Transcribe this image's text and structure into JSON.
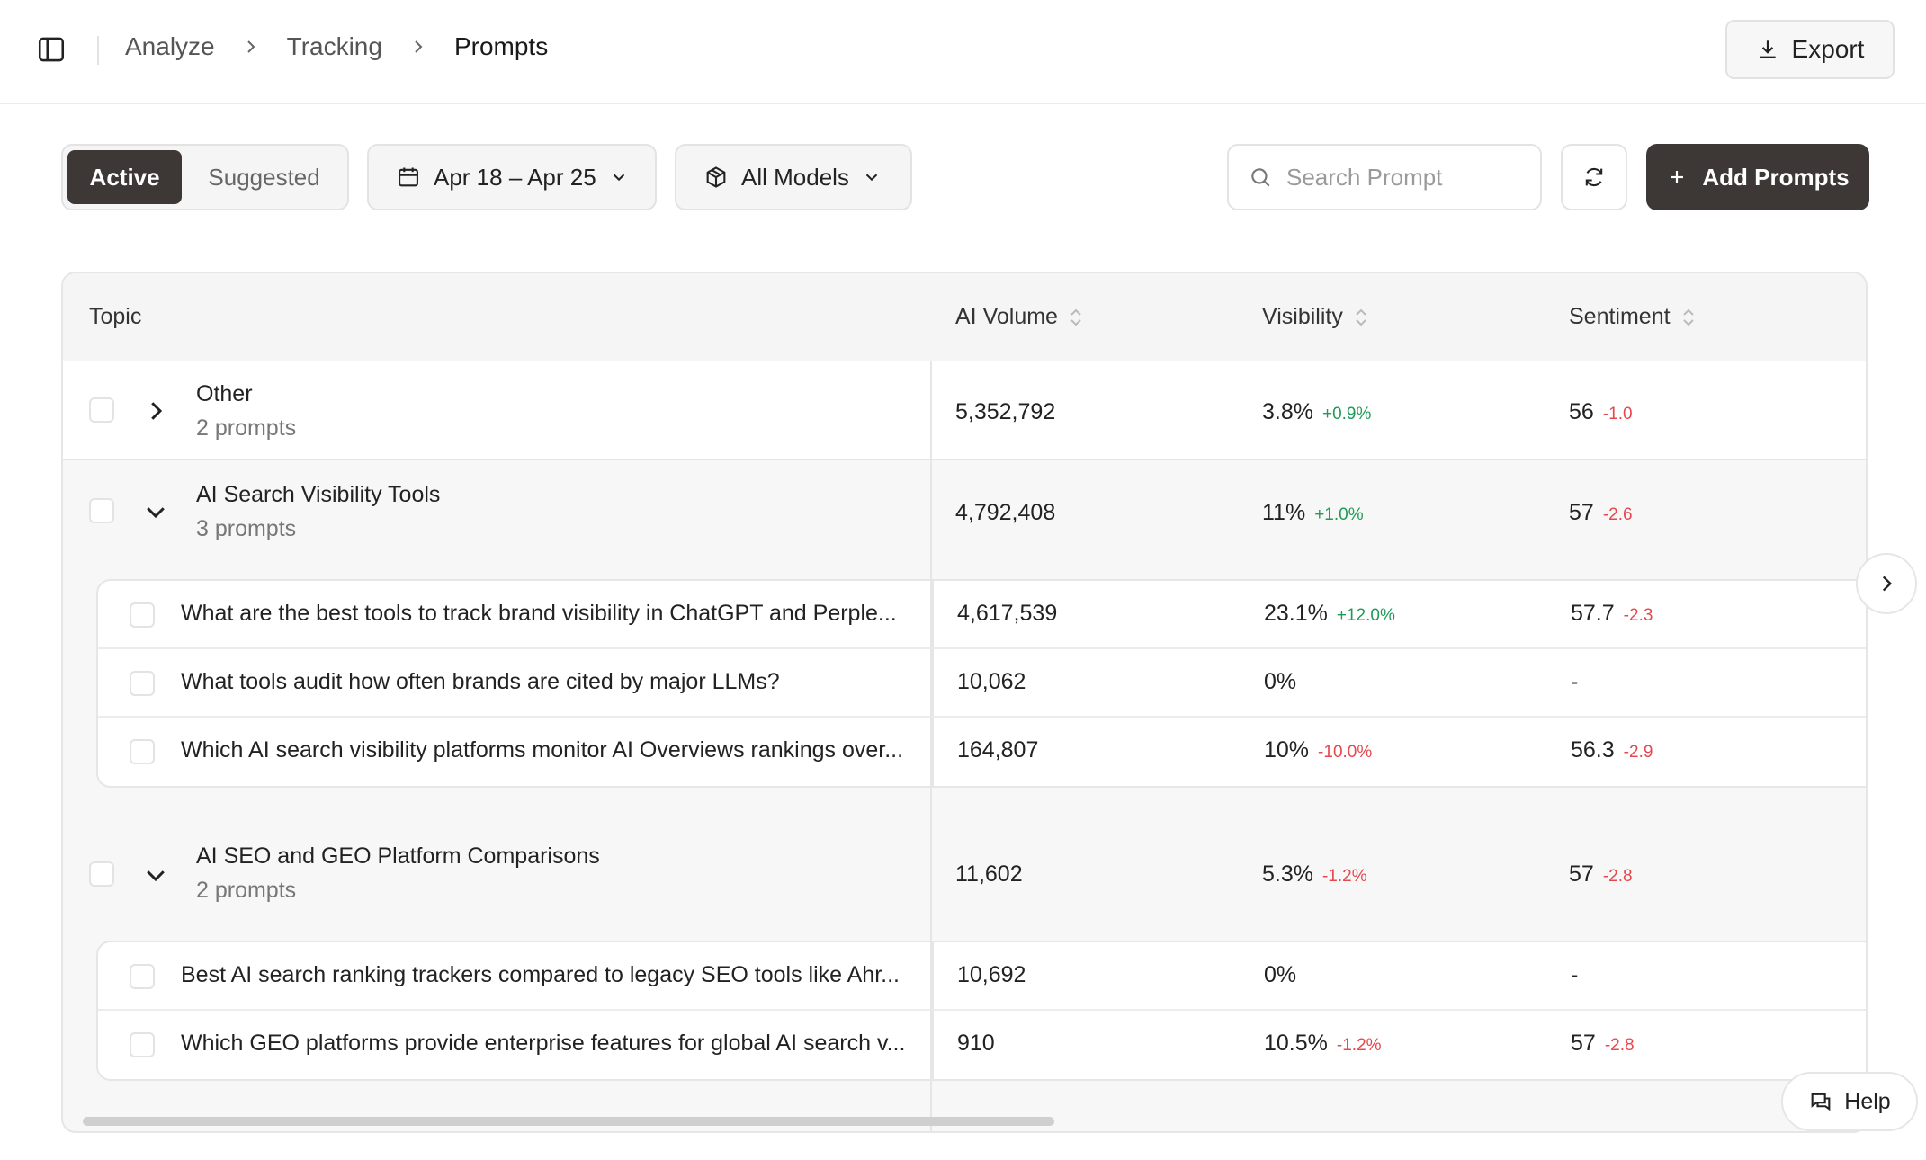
{
  "header": {
    "breadcrumb": [
      "Analyze",
      "Tracking",
      "Prompts"
    ],
    "export_label": "Export"
  },
  "toolbar": {
    "tabs": [
      "Active",
      "Suggested"
    ],
    "date_range": "Apr 18 – Apr 25",
    "models": "All Models",
    "search_placeholder": "Search Prompt",
    "add_label": "Add Prompts"
  },
  "table": {
    "columns": [
      "Topic",
      "AI Volume",
      "Visibility",
      "Sentiment"
    ],
    "groups": [
      {
        "title": "Other",
        "subtitle": "2 prompts",
        "expanded": false,
        "volume": "5,352,792",
        "visibility": "3.8%",
        "visibility_delta": "+0.9%",
        "sentiment": "56",
        "sentiment_delta": "-1.0",
        "prompts": []
      },
      {
        "title": "AI Search Visibility Tools",
        "subtitle": "3 prompts",
        "expanded": true,
        "volume": "4,792,408",
        "visibility": "11%",
        "visibility_delta": "+1.0%",
        "sentiment": "57",
        "sentiment_delta": "-2.6",
        "prompts": [
          {
            "text": "What are the best tools to track brand visibility in ChatGPT and Perple...",
            "volume": "4,617,539",
            "visibility": "23.1%",
            "visibility_delta": "+12.0%",
            "sentiment": "57.7",
            "sentiment_delta": "-2.3"
          },
          {
            "text": "What tools audit how often brands are cited by major LLMs?",
            "volume": "10,062",
            "visibility": "0%",
            "visibility_delta": "",
            "sentiment": "-",
            "sentiment_delta": ""
          },
          {
            "text": "Which AI search visibility platforms monitor AI Overviews rankings over...",
            "volume": "164,807",
            "visibility": "10%",
            "visibility_delta": "-10.0%",
            "sentiment": "56.3",
            "sentiment_delta": "-2.9"
          }
        ]
      },
      {
        "title": "AI SEO and GEO Platform Comparisons",
        "subtitle": "2 prompts",
        "expanded": true,
        "volume": "11,602",
        "visibility": "5.3%",
        "visibility_delta": "-1.2%",
        "sentiment": "57",
        "sentiment_delta": "-2.8",
        "prompts": [
          {
            "text": "Best AI search ranking trackers compared to legacy SEO tools like Ahr...",
            "volume": "10,692",
            "visibility": "0%",
            "visibility_delta": "",
            "sentiment": "-",
            "sentiment_delta": ""
          },
          {
            "text": "Which GEO platforms provide enterprise features for global AI search v...",
            "volume": "910",
            "visibility": "10.5%",
            "visibility_delta": "-1.2%",
            "sentiment": "57",
            "sentiment_delta": "-2.8"
          }
        ]
      }
    ]
  },
  "help_label": "Help",
  "colors": {
    "accent": "#3d3835",
    "positive": "#1f9b57",
    "negative": "#e5484d"
  }
}
